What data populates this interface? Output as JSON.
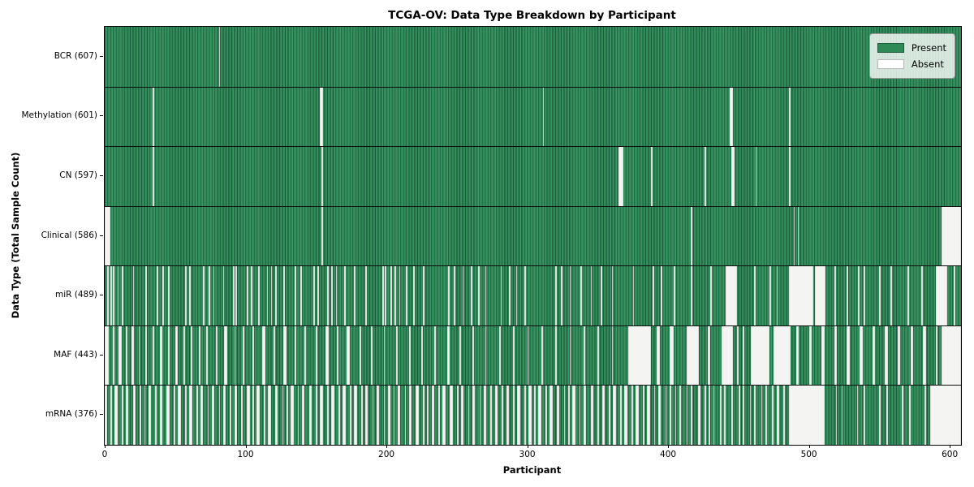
{
  "title": "TCGA-OV: Data Type Breakdown by Participant",
  "legend": {
    "entries": [
      {
        "label": "Present",
        "color": "#2e8b57"
      },
      {
        "label": "Absent",
        "color": "#ffffff"
      }
    ]
  },
  "colors": {
    "present": "#2e8b57",
    "present_edge_dark": "#1c5c3b",
    "absent": "#f4f4f2",
    "plot_border": "#000000",
    "background": "#ffffff"
  },
  "chart_data": {
    "type": "heatmap",
    "title": "TCGA-OV: Data Type Breakdown by Participant",
    "xlabel": "Participant",
    "ylabel": "Data Type (Total Sample Count)",
    "x_range": [
      0,
      608
    ],
    "x_ticks": [
      0,
      100,
      200,
      300,
      400,
      500,
      600
    ],
    "grid": false,
    "legend_position": "upper right",
    "legend_entries": [
      "Present",
      "Absent"
    ],
    "total_participants": 608,
    "rows": [
      {
        "data_type": "BCR",
        "label": "BCR (607)",
        "present_count": 607,
        "absent_count": 1,
        "absent": [
          [
            81,
            81
          ]
        ]
      },
      {
        "data_type": "Methylation",
        "label": "Methylation (601)",
        "present_count": 601,
        "absent_count": 7,
        "absent": [
          [
            34,
            34
          ],
          [
            153,
            154
          ],
          [
            311,
            311
          ],
          [
            444,
            445
          ],
          [
            486,
            486
          ]
        ]
      },
      {
        "data_type": "CN",
        "label": "CN (597)",
        "present_count": 597,
        "absent_count": 11,
        "absent": [
          [
            34,
            34
          ],
          [
            154,
            154
          ],
          [
            365,
            367
          ],
          [
            388,
            388
          ],
          [
            426,
            426
          ],
          [
            445,
            446
          ],
          [
            462,
            462
          ],
          [
            486,
            486
          ]
        ]
      },
      {
        "data_type": "Clinical",
        "label": "Clinical (586)",
        "present_count": 586,
        "absent_count": 22,
        "absent": [
          [
            0,
            3
          ],
          [
            154,
            154
          ],
          [
            416,
            416
          ],
          [
            489,
            489
          ],
          [
            492,
            492
          ],
          [
            594,
            607
          ]
        ]
      },
      {
        "data_type": "miR",
        "label": "miR (489)",
        "present_count": 489,
        "absent_count": 119,
        "absent": [
          [
            2,
            2
          ],
          [
            4,
            4
          ],
          [
            6,
            6
          ],
          [
            9,
            9
          ],
          [
            12,
            12
          ],
          [
            20,
            20
          ],
          [
            29,
            29
          ],
          [
            37,
            37
          ],
          [
            41,
            41
          ],
          [
            45,
            45
          ],
          [
            57,
            57
          ],
          [
            60,
            60
          ],
          [
            70,
            70
          ],
          [
            74,
            74
          ],
          [
            77,
            77
          ],
          [
            84,
            84
          ],
          [
            91,
            91
          ],
          [
            93,
            93
          ],
          [
            101,
            101
          ],
          [
            104,
            104
          ],
          [
            109,
            109
          ],
          [
            115,
            115
          ],
          [
            118,
            118
          ],
          [
            121,
            121
          ],
          [
            127,
            127
          ],
          [
            135,
            135
          ],
          [
            139,
            139
          ],
          [
            148,
            148
          ],
          [
            151,
            151
          ],
          [
            158,
            158
          ],
          [
            161,
            161
          ],
          [
            164,
            164
          ],
          [
            170,
            170
          ],
          [
            177,
            177
          ],
          [
            185,
            185
          ],
          [
            197,
            197
          ],
          [
            199,
            199
          ],
          [
            203,
            203
          ],
          [
            206,
            206
          ],
          [
            209,
            209
          ],
          [
            214,
            214
          ],
          [
            219,
            219
          ],
          [
            226,
            226
          ],
          [
            244,
            244
          ],
          [
            248,
            248
          ],
          [
            254,
            254
          ],
          [
            260,
            260
          ],
          [
            265,
            265
          ],
          [
            270,
            270
          ],
          [
            281,
            281
          ],
          [
            287,
            287
          ],
          [
            292,
            292
          ],
          [
            298,
            298
          ],
          [
            320,
            320
          ],
          [
            324,
            324
          ],
          [
            330,
            330
          ],
          [
            338,
            338
          ],
          [
            345,
            345
          ],
          [
            352,
            352
          ],
          [
            360,
            360
          ],
          [
            375,
            375
          ],
          [
            389,
            389
          ],
          [
            395,
            395
          ],
          [
            404,
            404
          ],
          [
            416,
            416
          ],
          [
            430,
            430
          ],
          [
            441,
            448
          ],
          [
            461,
            461
          ],
          [
            472,
            472
          ],
          [
            477,
            477
          ],
          [
            486,
            502
          ],
          [
            504,
            511
          ],
          [
            518,
            518
          ],
          [
            527,
            527
          ],
          [
            535,
            535
          ],
          [
            539,
            539
          ],
          [
            550,
            550
          ],
          [
            558,
            558
          ],
          [
            570,
            570
          ],
          [
            580,
            580
          ],
          [
            590,
            597
          ],
          [
            603,
            603
          ]
        ]
      },
      {
        "data_type": "MAF",
        "label": "MAF (443)",
        "present_count": 443,
        "absent_count": 165,
        "absent": [
          [
            0,
            2
          ],
          [
            6,
            6
          ],
          [
            10,
            11
          ],
          [
            15,
            15
          ],
          [
            19,
            20
          ],
          [
            24,
            24
          ],
          [
            29,
            29
          ],
          [
            34,
            34
          ],
          [
            39,
            40
          ],
          [
            45,
            45
          ],
          [
            50,
            51
          ],
          [
            56,
            56
          ],
          [
            61,
            61
          ],
          [
            67,
            67
          ],
          [
            72,
            72
          ],
          [
            79,
            79
          ],
          [
            85,
            86
          ],
          [
            92,
            92
          ],
          [
            98,
            98
          ],
          [
            105,
            105
          ],
          [
            112,
            113
          ],
          [
            120,
            120
          ],
          [
            127,
            128
          ],
          [
            135,
            135
          ],
          [
            142,
            142
          ],
          [
            150,
            150
          ],
          [
            157,
            158
          ],
          [
            165,
            165
          ],
          [
            172,
            173
          ],
          [
            181,
            181
          ],
          [
            189,
            189
          ],
          [
            198,
            198
          ],
          [
            207,
            207
          ],
          [
            216,
            216
          ],
          [
            225,
            225
          ],
          [
            234,
            234
          ],
          [
            243,
            244
          ],
          [
            252,
            252
          ],
          [
            261,
            261
          ],
          [
            270,
            270
          ],
          [
            280,
            280
          ],
          [
            290,
            290
          ],
          [
            300,
            300
          ],
          [
            310,
            310
          ],
          [
            320,
            320
          ],
          [
            330,
            330
          ],
          [
            340,
            340
          ],
          [
            350,
            350
          ],
          [
            360,
            360
          ],
          [
            372,
            387
          ],
          [
            392,
            393
          ],
          [
            401,
            403
          ],
          [
            413,
            421
          ],
          [
            428,
            429
          ],
          [
            438,
            445
          ],
          [
            449,
            449
          ],
          [
            453,
            453
          ],
          [
            459,
            471
          ],
          [
            475,
            486
          ],
          [
            491,
            492
          ],
          [
            500,
            501
          ],
          [
            509,
            510
          ],
          [
            518,
            519
          ],
          [
            527,
            528
          ],
          [
            536,
            537
          ],
          [
            545,
            546
          ],
          [
            554,
            555
          ],
          [
            563,
            564
          ],
          [
            572,
            573
          ],
          [
            581,
            582
          ],
          [
            590,
            590
          ],
          [
            594,
            607
          ]
        ]
      },
      {
        "data_type": "mRNA",
        "label": "mRNA (376)",
        "present_count": 376,
        "absent_count": 232,
        "absent": [
          [
            0,
            1
          ],
          [
            4,
            4
          ],
          [
            7,
            8
          ],
          [
            12,
            12
          ],
          [
            15,
            16
          ],
          [
            20,
            21
          ],
          [
            25,
            25
          ],
          [
            28,
            28
          ],
          [
            31,
            32
          ],
          [
            36,
            36
          ],
          [
            39,
            40
          ],
          [
            44,
            45
          ],
          [
            49,
            49
          ],
          [
            52,
            53
          ],
          [
            57,
            57
          ],
          [
            60,
            61
          ],
          [
            65,
            65
          ],
          [
            68,
            69
          ],
          [
            73,
            73
          ],
          [
            76,
            77
          ],
          [
            81,
            81
          ],
          [
            84,
            85
          ],
          [
            89,
            89
          ],
          [
            92,
            93
          ],
          [
            97,
            97
          ],
          [
            101,
            102
          ],
          [
            105,
            105
          ],
          [
            108,
            109
          ],
          [
            113,
            113
          ],
          [
            116,
            117
          ],
          [
            121,
            122
          ],
          [
            126,
            126
          ],
          [
            129,
            129
          ],
          [
            132,
            133
          ],
          [
            137,
            137
          ],
          [
            140,
            141
          ],
          [
            145,
            146
          ],
          [
            150,
            150
          ],
          [
            153,
            154
          ],
          [
            158,
            158
          ],
          [
            161,
            162
          ],
          [
            166,
            166
          ],
          [
            169,
            170
          ],
          [
            174,
            174
          ],
          [
            177,
            178
          ],
          [
            182,
            182
          ],
          [
            185,
            186
          ],
          [
            190,
            190
          ],
          [
            193,
            194
          ],
          [
            198,
            198
          ],
          [
            201,
            202
          ],
          [
            205,
            205
          ],
          [
            208,
            209
          ],
          [
            213,
            213
          ],
          [
            216,
            217
          ],
          [
            221,
            222
          ],
          [
            226,
            226
          ],
          [
            229,
            229
          ],
          [
            232,
            233
          ],
          [
            237,
            237
          ],
          [
            240,
            241
          ],
          [
            245,
            246
          ],
          [
            250,
            250
          ],
          [
            253,
            254
          ],
          [
            258,
            258
          ],
          [
            261,
            262
          ],
          [
            266,
            266
          ],
          [
            269,
            270
          ],
          [
            274,
            274
          ],
          [
            277,
            278
          ],
          [
            282,
            282
          ],
          [
            285,
            286
          ],
          [
            290,
            290
          ],
          [
            293,
            294
          ],
          [
            298,
            298
          ],
          [
            301,
            302
          ],
          [
            305,
            305
          ],
          [
            308,
            309
          ],
          [
            313,
            313
          ],
          [
            316,
            317
          ],
          [
            321,
            322
          ],
          [
            326,
            326
          ],
          [
            329,
            329
          ],
          [
            332,
            333
          ],
          [
            337,
            337
          ],
          [
            340,
            341
          ],
          [
            345,
            346
          ],
          [
            350,
            350
          ],
          [
            353,
            354
          ],
          [
            358,
            358
          ],
          [
            361,
            362
          ],
          [
            366,
            366
          ],
          [
            369,
            370
          ],
          [
            374,
            374
          ],
          [
            377,
            378
          ],
          [
            382,
            382
          ],
          [
            385,
            386
          ],
          [
            390,
            390
          ],
          [
            393,
            394
          ],
          [
            398,
            398
          ],
          [
            401,
            401
          ],
          [
            405,
            405
          ],
          [
            408,
            408
          ],
          [
            413,
            413
          ],
          [
            416,
            416
          ],
          [
            421,
            422
          ],
          [
            426,
            426
          ],
          [
            429,
            429
          ],
          [
            432,
            432
          ],
          [
            437,
            437
          ],
          [
            440,
            440
          ],
          [
            445,
            445
          ],
          [
            450,
            450
          ],
          [
            453,
            453
          ],
          [
            458,
            458
          ],
          [
            461,
            461
          ],
          [
            466,
            466
          ],
          [
            469,
            469
          ],
          [
            474,
            474
          ],
          [
            477,
            478
          ],
          [
            482,
            482
          ],
          [
            486,
            510
          ],
          [
            519,
            519
          ],
          [
            523,
            523
          ],
          [
            534,
            534
          ],
          [
            539,
            539
          ],
          [
            550,
            550
          ],
          [
            555,
            555
          ],
          [
            566,
            566
          ],
          [
            571,
            571
          ],
          [
            582,
            582
          ],
          [
            586,
            607
          ]
        ]
      }
    ]
  }
}
